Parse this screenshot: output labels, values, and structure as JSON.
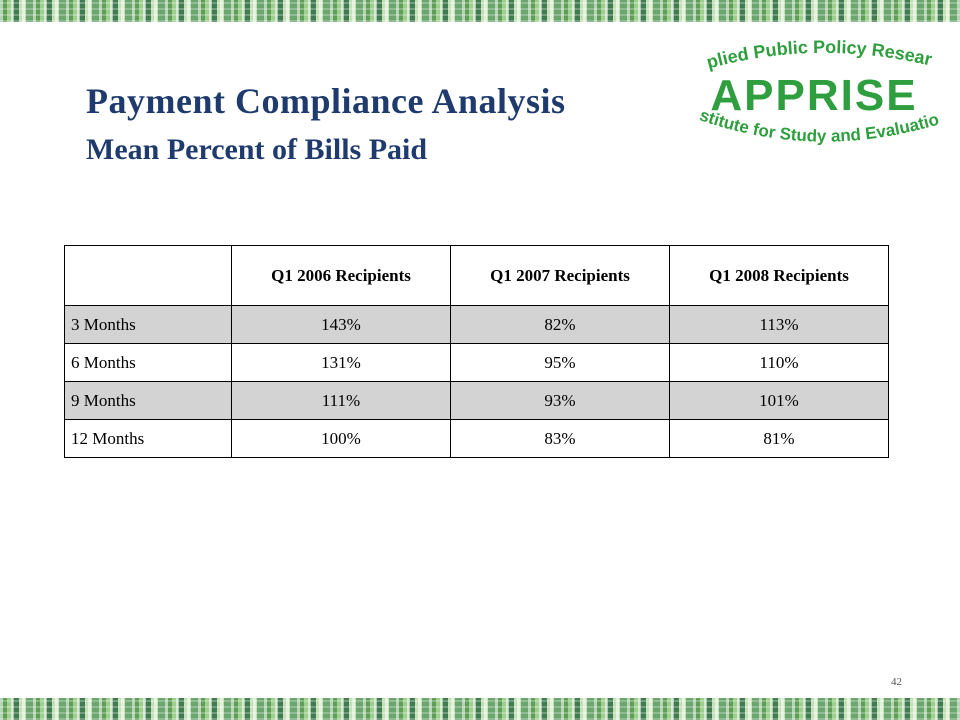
{
  "slide": {
    "title": "Payment Compliance Analysis",
    "subtitle": "Mean Percent of Bills Paid",
    "page_number": "42"
  },
  "logo": {
    "top_text": "Applied Public Policy Research",
    "main_text": "APPRISE",
    "bottom_text": "Institute for Study and Evaluation",
    "color": "#2e9e3e"
  },
  "table": {
    "headers": [
      "",
      "Q1 2006 Recipients",
      "Q1 2007 Recipients",
      "Q1 2008 Recipients"
    ],
    "rows": [
      {
        "label": "3 Months",
        "values": [
          "143%",
          "82%",
          "113%"
        ]
      },
      {
        "label": "6 Months",
        "values": [
          "131%",
          "95%",
          "110%"
        ]
      },
      {
        "label": "9 Months",
        "values": [
          "111%",
          "93%",
          "101%"
        ]
      },
      {
        "label": "12 Months",
        "values": [
          "100%",
          "83%",
          "81%"
        ]
      }
    ]
  },
  "colors": {
    "title": "#1f3b6e",
    "shaded_row": "#d3d3d3",
    "band_green": "#7cb87a"
  }
}
